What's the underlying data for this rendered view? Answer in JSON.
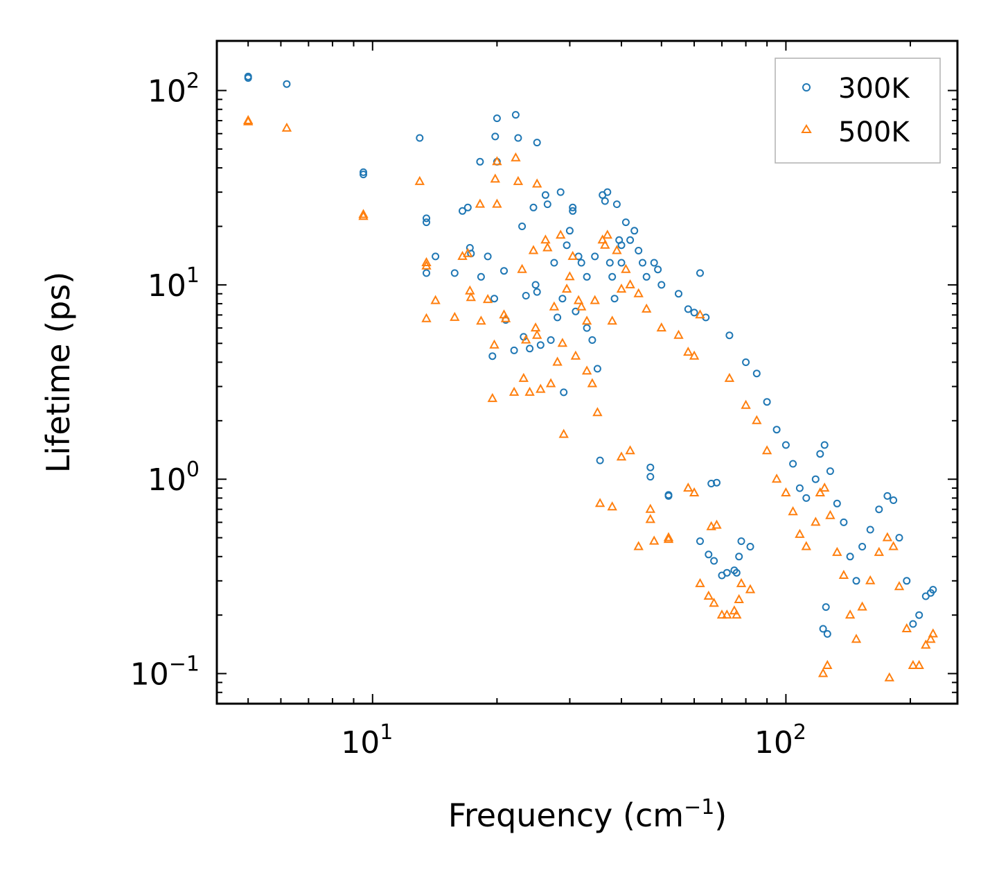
{
  "chart_data": {
    "type": "scatter",
    "title": "",
    "xlabel": "Frequency (cm",
    "xlabel_sup": "−1",
    "xlabel_close": ")",
    "ylabel": "Lifetime (ps)",
    "xscale": "log",
    "yscale": "log",
    "xlim": [
      4.2,
      260
    ],
    "ylim": [
      0.07,
      180
    ],
    "x_ticks": [
      {
        "base": "10",
        "exp": "1",
        "value": 10
      },
      {
        "base": "10",
        "exp": "2",
        "value": 100
      }
    ],
    "y_ticks": [
      {
        "base": "10",
        "exp": "2",
        "value": 100
      },
      {
        "base": "10",
        "exp": "1",
        "value": 10
      },
      {
        "base": "10",
        "exp": "0",
        "value": 1
      },
      {
        "base": "10",
        "exp": "−1",
        "value": 0.1
      }
    ],
    "legend_position": "top-right",
    "series": [
      {
        "name": "300K",
        "marker": "circle-open",
        "color": "#1f77b4",
        "points": [
          [
            5.0,
            118
          ],
          [
            5.0,
            116
          ],
          [
            6.2,
            108
          ],
          [
            9.5,
            38
          ],
          [
            9.5,
            37
          ],
          [
            13.0,
            57
          ],
          [
            13.5,
            22
          ],
          [
            13.5,
            21
          ],
          [
            13.5,
            11.5
          ],
          [
            14.2,
            14
          ],
          [
            15.8,
            11.5
          ],
          [
            16.5,
            24
          ],
          [
            17.0,
            25
          ],
          [
            17.2,
            15.5
          ],
          [
            17.3,
            14.5
          ],
          [
            18.2,
            43
          ],
          [
            18.3,
            11
          ],
          [
            19.0,
            14
          ],
          [
            19.5,
            4.3
          ],
          [
            19.7,
            8.5
          ],
          [
            19.8,
            58
          ],
          [
            20.0,
            72
          ],
          [
            20.0,
            43
          ],
          [
            20.8,
            11.8
          ],
          [
            21.0,
            6.6
          ],
          [
            22.0,
            4.6
          ],
          [
            22.2,
            75
          ],
          [
            22.5,
            57
          ],
          [
            23.0,
            20
          ],
          [
            23.2,
            5.4
          ],
          [
            23.5,
            8.8
          ],
          [
            24.0,
            4.7
          ],
          [
            24.5,
            25
          ],
          [
            24.8,
            10
          ],
          [
            25.0,
            9.2
          ],
          [
            25.0,
            54
          ],
          [
            25.5,
            4.9
          ],
          [
            26.2,
            29
          ],
          [
            26.5,
            26
          ],
          [
            27.0,
            5.2
          ],
          [
            27.5,
            13
          ],
          [
            28.0,
            6.8
          ],
          [
            28.5,
            30
          ],
          [
            28.8,
            8.5
          ],
          [
            29.0,
            2.8
          ],
          [
            29.5,
            16
          ],
          [
            30.0,
            19
          ],
          [
            30.5,
            24
          ],
          [
            30.5,
            25
          ],
          [
            31.0,
            7.3
          ],
          [
            31.5,
            14
          ],
          [
            32.0,
            13
          ],
          [
            33.0,
            6.0
          ],
          [
            33.0,
            11
          ],
          [
            34.0,
            5.2
          ],
          [
            34.5,
            14
          ],
          [
            35.0,
            3.7
          ],
          [
            35.5,
            1.25
          ],
          [
            36.0,
            29
          ],
          [
            36.5,
            27
          ],
          [
            37.0,
            30
          ],
          [
            37.5,
            13
          ],
          [
            38.0,
            11
          ],
          [
            38.5,
            8.5
          ],
          [
            39.0,
            26
          ],
          [
            39.5,
            17
          ],
          [
            40.0,
            16
          ],
          [
            40.0,
            13
          ],
          [
            41.0,
            21
          ],
          [
            42.0,
            17
          ],
          [
            43.0,
            19
          ],
          [
            44.0,
            15
          ],
          [
            45.0,
            13
          ],
          [
            46.0,
            11
          ],
          [
            47.0,
            1.15
          ],
          [
            47.0,
            1.03
          ],
          [
            48.0,
            13
          ],
          [
            49.0,
            12
          ],
          [
            50.0,
            10
          ],
          [
            52.0,
            0.83
          ],
          [
            52.0,
            0.82
          ],
          [
            55.0,
            9
          ],
          [
            58.0,
            7.5
          ],
          [
            60.0,
            7.2
          ],
          [
            62.0,
            0.48
          ],
          [
            62.0,
            11.5
          ],
          [
            64.0,
            6.8
          ],
          [
            65.0,
            0.41
          ],
          [
            66.0,
            0.95
          ],
          [
            67.0,
            0.38
          ],
          [
            68.0,
            0.96
          ],
          [
            70.0,
            0.32
          ],
          [
            72.0,
            0.33
          ],
          [
            73.0,
            5.5
          ],
          [
            75.0,
            0.34
          ],
          [
            76.0,
            0.33
          ],
          [
            77.0,
            0.4
          ],
          [
            78.0,
            0.48
          ],
          [
            80.0,
            4.0
          ],
          [
            82.0,
            0.45
          ],
          [
            85.0,
            3.5
          ],
          [
            90.0,
            2.5
          ],
          [
            95.0,
            1.8
          ],
          [
            100.0,
            1.5
          ],
          [
            104.0,
            1.2
          ],
          [
            108.0,
            0.9
          ],
          [
            112.0,
            0.8
          ],
          [
            118.0,
            1.0
          ],
          [
            121.0,
            1.35
          ],
          [
            124.0,
            1.5
          ],
          [
            128.0,
            1.1
          ],
          [
            133.0,
            0.75
          ],
          [
            138.0,
            0.6
          ],
          [
            143.0,
            0.4
          ],
          [
            148.0,
            0.3
          ],
          [
            153.0,
            0.45
          ],
          [
            160.0,
            0.55
          ],
          [
            168.0,
            0.7
          ],
          [
            176.0,
            0.82
          ],
          [
            182.0,
            0.78
          ],
          [
            188.0,
            0.5
          ],
          [
            196.0,
            0.3
          ],
          [
            203.0,
            0.18
          ],
          [
            210.0,
            0.2
          ],
          [
            218.0,
            0.25
          ],
          [
            224.0,
            0.26
          ],
          [
            227.0,
            0.27
          ],
          [
            123.0,
            0.17
          ],
          [
            126.0,
            0.16
          ],
          [
            125.0,
            0.22
          ]
        ]
      },
      {
        "name": "500K",
        "marker": "triangle-open",
        "color": "#ff7f0e",
        "points": [
          [
            5.0,
            70
          ],
          [
            5.0,
            69
          ],
          [
            6.2,
            64
          ],
          [
            9.5,
            23
          ],
          [
            9.5,
            22.5
          ],
          [
            13.0,
            34
          ],
          [
            13.5,
            13
          ],
          [
            13.5,
            12.5
          ],
          [
            13.5,
            6.7
          ],
          [
            14.2,
            8.3
          ],
          [
            15.8,
            6.8
          ],
          [
            16.5,
            14
          ],
          [
            17.0,
            14.5
          ],
          [
            17.2,
            9.3
          ],
          [
            17.3,
            8.6
          ],
          [
            18.2,
            26
          ],
          [
            18.3,
            6.5
          ],
          [
            19.0,
            8.4
          ],
          [
            19.5,
            2.6
          ],
          [
            19.7,
            4.9
          ],
          [
            19.8,
            35
          ],
          [
            20.0,
            43
          ],
          [
            20.0,
            26
          ],
          [
            20.8,
            7.0
          ],
          [
            21.0,
            6.7
          ],
          [
            22.0,
            2.8
          ],
          [
            22.2,
            45
          ],
          [
            22.5,
            34
          ],
          [
            23.0,
            12
          ],
          [
            23.2,
            3.3
          ],
          [
            23.5,
            5.2
          ],
          [
            24.0,
            2.8
          ],
          [
            24.5,
            15
          ],
          [
            24.8,
            6.0
          ],
          [
            25.0,
            5.5
          ],
          [
            25.0,
            33
          ],
          [
            25.5,
            2.9
          ],
          [
            26.2,
            17
          ],
          [
            26.5,
            15.5
          ],
          [
            27.0,
            3.1
          ],
          [
            27.5,
            7.7
          ],
          [
            28.0,
            4.0
          ],
          [
            28.5,
            18
          ],
          [
            28.8,
            5.0
          ],
          [
            29.0,
            1.7
          ],
          [
            29.5,
            9.5
          ],
          [
            30.0,
            11
          ],
          [
            30.5,
            14
          ],
          [
            31.0,
            4.3
          ],
          [
            31.5,
            8.3
          ],
          [
            32.0,
            7.7
          ],
          [
            33.0,
            3.6
          ],
          [
            33.0,
            6.5
          ],
          [
            34.0,
            3.1
          ],
          [
            34.5,
            8.3
          ],
          [
            35.0,
            2.2
          ],
          [
            35.5,
            0.75
          ],
          [
            36.0,
            17
          ],
          [
            36.5,
            16
          ],
          [
            37.0,
            18
          ],
          [
            38.0,
            6.5
          ],
          [
            39.0,
            15
          ],
          [
            40.0,
            9.5
          ],
          [
            41.0,
            12
          ],
          [
            42.0,
            10
          ],
          [
            44.0,
            9
          ],
          [
            46.0,
            7.5
          ],
          [
            47.0,
            0.7
          ],
          [
            47.0,
            0.62
          ],
          [
            50.0,
            6
          ],
          [
            52.0,
            0.5
          ],
          [
            52.0,
            0.49
          ],
          [
            55.0,
            5.5
          ],
          [
            58.0,
            4.5
          ],
          [
            60.0,
            4.3
          ],
          [
            62.0,
            0.29
          ],
          [
            62.0,
            7.0
          ],
          [
            65.0,
            0.25
          ],
          [
            66.0,
            0.57
          ],
          [
            67.0,
            0.23
          ],
          [
            68.0,
            0.58
          ],
          [
            70.0,
            0.2
          ],
          [
            72.0,
            0.2
          ],
          [
            73.0,
            3.3
          ],
          [
            75.0,
            0.21
          ],
          [
            76.0,
            0.2
          ],
          [
            77.0,
            0.24
          ],
          [
            78.0,
            0.29
          ],
          [
            80.0,
            2.4
          ],
          [
            82.0,
            0.27
          ],
          [
            85.0,
            2.0
          ],
          [
            90.0,
            1.4
          ],
          [
            95.0,
            1.0
          ],
          [
            100.0,
            0.85
          ],
          [
            104.0,
            0.68
          ],
          [
            108.0,
            0.52
          ],
          [
            112.0,
            0.45
          ],
          [
            118.0,
            0.6
          ],
          [
            121.0,
            0.85
          ],
          [
            124.0,
            0.9
          ],
          [
            128.0,
            0.65
          ],
          [
            133.0,
            0.42
          ],
          [
            138.0,
            0.32
          ],
          [
            143.0,
            0.2
          ],
          [
            148.0,
            0.15
          ],
          [
            153.0,
            0.22
          ],
          [
            160.0,
            0.3
          ],
          [
            168.0,
            0.42
          ],
          [
            176.0,
            0.5
          ],
          [
            182.0,
            0.45
          ],
          [
            188.0,
            0.28
          ],
          [
            196.0,
            0.17
          ],
          [
            203.0,
            0.11
          ],
          [
            210.0,
            0.11
          ],
          [
            218.0,
            0.14
          ],
          [
            224.0,
            0.15
          ],
          [
            227.0,
            0.16
          ],
          [
            123.0,
            0.1
          ],
          [
            126.0,
            0.11
          ],
          [
            178.0,
            0.095
          ],
          [
            44.0,
            0.45
          ],
          [
            48.0,
            0.48
          ],
          [
            58.0,
            0.9
          ],
          [
            60.0,
            0.85
          ],
          [
            38.0,
            0.72
          ],
          [
            40.0,
            1.3
          ],
          [
            42.0,
            1.4
          ]
        ]
      }
    ]
  }
}
